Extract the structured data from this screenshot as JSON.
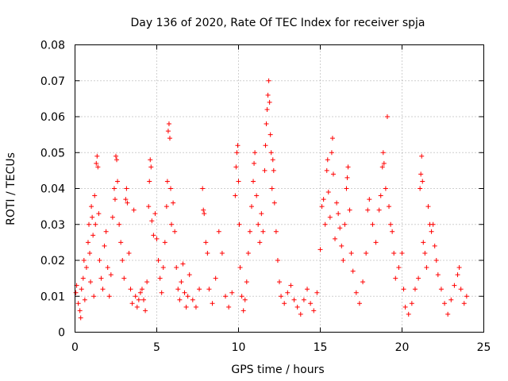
{
  "chart_data": {
    "type": "scatter",
    "title": "Day 136 of 2020, Rate Of TEC Index for receiver spja",
    "xlabel": "GPS time / hours",
    "ylabel": "ROTI / TECUs",
    "xlim": [
      0,
      25
    ],
    "ylim": [
      0,
      0.08
    ],
    "xticks": [
      0,
      5,
      10,
      15,
      20,
      25
    ],
    "xtick_labels": [
      "0",
      "5",
      "10",
      "15",
      "20",
      "25"
    ],
    "yticks": [
      0,
      0.01,
      0.02,
      0.03,
      0.04,
      0.05,
      0.06,
      0.07,
      0.08
    ],
    "ytick_labels": [
      "0",
      "0.01",
      "0.02",
      "0.03",
      "0.04",
      "0.05",
      "0.06",
      "0.07",
      "0.08"
    ],
    "grid": true,
    "marker": "plus",
    "color": "#ff0000",
    "series": [
      {
        "name": "ROTI",
        "points": [
          [
            0.05,
            0.011
          ],
          [
            0.1,
            0.013
          ],
          [
            0.2,
            0.008
          ],
          [
            0.3,
            0.006
          ],
          [
            0.35,
            0.004
          ],
          [
            0.4,
            0.012
          ],
          [
            0.5,
            0.015
          ],
          [
            0.55,
            0.02
          ],
          [
            0.6,
            0.009
          ],
          [
            0.7,
            0.018
          ],
          [
            0.8,
            0.025
          ],
          [
            0.85,
            0.03
          ],
          [
            0.9,
            0.022
          ],
          [
            0.95,
            0.014
          ],
          [
            1.0,
            0.035
          ],
          [
            1.05,
            0.032
          ],
          [
            1.1,
            0.027
          ],
          [
            1.15,
            0.01
          ],
          [
            1.2,
            0.038
          ],
          [
            1.25,
            0.03
          ],
          [
            1.3,
            0.047
          ],
          [
            1.35,
            0.049
          ],
          [
            1.4,
            0.046
          ],
          [
            1.45,
            0.033
          ],
          [
            1.5,
            0.02
          ],
          [
            1.6,
            0.015
          ],
          [
            1.7,
            0.012
          ],
          [
            1.8,
            0.024
          ],
          [
            1.9,
            0.028
          ],
          [
            2.0,
            0.018
          ],
          [
            2.1,
            0.01
          ],
          [
            2.2,
            0.016
          ],
          [
            2.3,
            0.032
          ],
          [
            2.4,
            0.04
          ],
          [
            2.45,
            0.037
          ],
          [
            2.5,
            0.049
          ],
          [
            2.55,
            0.048
          ],
          [
            2.6,
            0.042
          ],
          [
            2.7,
            0.03
          ],
          [
            2.8,
            0.025
          ],
          [
            2.9,
            0.02
          ],
          [
            3.0,
            0.015
          ],
          [
            3.1,
            0.037
          ],
          [
            3.15,
            0.04
          ],
          [
            3.2,
            0.036
          ],
          [
            3.3,
            0.022
          ],
          [
            3.4,
            0.012
          ],
          [
            3.5,
            0.008
          ],
          [
            3.6,
            0.034
          ],
          [
            3.7,
            0.01
          ],
          [
            3.8,
            0.007
          ],
          [
            3.9,
            0.009
          ],
          [
            4.0,
            0.011
          ],
          [
            4.1,
            0.012
          ],
          [
            4.2,
            0.009
          ],
          [
            4.3,
            0.006
          ],
          [
            4.4,
            0.014
          ],
          [
            4.5,
            0.035
          ],
          [
            4.55,
            0.042
          ],
          [
            4.6,
            0.048
          ],
          [
            4.65,
            0.046
          ],
          [
            4.7,
            0.031
          ],
          [
            4.8,
            0.027
          ],
          [
            4.9,
            0.033
          ],
          [
            5.0,
            0.026
          ],
          [
            5.1,
            0.02
          ],
          [
            5.2,
            0.015
          ],
          [
            5.3,
            0.011
          ],
          [
            5.4,
            0.018
          ],
          [
            5.5,
            0.025
          ],
          [
            5.6,
            0.035
          ],
          [
            5.65,
            0.042
          ],
          [
            5.7,
            0.056
          ],
          [
            5.75,
            0.058
          ],
          [
            5.8,
            0.054
          ],
          [
            5.85,
            0.04
          ],
          [
            5.9,
            0.03
          ],
          [
            6.0,
            0.036
          ],
          [
            6.1,
            0.028
          ],
          [
            6.2,
            0.018
          ],
          [
            6.3,
            0.012
          ],
          [
            6.4,
            0.009
          ],
          [
            6.5,
            0.014
          ],
          [
            6.6,
            0.019
          ],
          [
            6.7,
            0.011
          ],
          [
            6.8,
            0.007
          ],
          [
            6.9,
            0.01
          ],
          [
            7.0,
            0.016
          ],
          [
            7.2,
            0.009
          ],
          [
            7.4,
            0.007
          ],
          [
            7.6,
            0.012
          ],
          [
            7.8,
            0.04
          ],
          [
            7.85,
            0.034
          ],
          [
            7.9,
            0.033
          ],
          [
            8.0,
            0.025
          ],
          [
            8.1,
            0.022
          ],
          [
            8.2,
            0.012
          ],
          [
            8.4,
            0.008
          ],
          [
            8.6,
            0.015
          ],
          [
            8.8,
            0.028
          ],
          [
            9.0,
            0.022
          ],
          [
            9.2,
            0.01
          ],
          [
            9.4,
            0.007
          ],
          [
            9.6,
            0.011
          ],
          [
            9.8,
            0.038
          ],
          [
            9.85,
            0.046
          ],
          [
            9.9,
            0.05
          ],
          [
            9.95,
            0.052
          ],
          [
            10.0,
            0.042
          ],
          [
            10.05,
            0.03
          ],
          [
            10.1,
            0.018
          ],
          [
            10.2,
            0.01
          ],
          [
            10.3,
            0.006
          ],
          [
            10.4,
            0.009
          ],
          [
            10.5,
            0.014
          ],
          [
            10.6,
            0.022
          ],
          [
            10.7,
            0.028
          ],
          [
            10.8,
            0.035
          ],
          [
            10.9,
            0.042
          ],
          [
            10.95,
            0.047
          ],
          [
            11.0,
            0.05
          ],
          [
            11.1,
            0.038
          ],
          [
            11.2,
            0.03
          ],
          [
            11.3,
            0.025
          ],
          [
            11.4,
            0.033
          ],
          [
            11.5,
            0.028
          ],
          [
            11.6,
            0.045
          ],
          [
            11.65,
            0.052
          ],
          [
            11.7,
            0.058
          ],
          [
            11.75,
            0.062
          ],
          [
            11.8,
            0.066
          ],
          [
            11.85,
            0.07
          ],
          [
            11.9,
            0.064
          ],
          [
            11.95,
            0.055
          ],
          [
            12.0,
            0.05
          ],
          [
            12.05,
            0.04
          ],
          [
            12.1,
            0.048
          ],
          [
            12.15,
            0.045
          ],
          [
            12.2,
            0.036
          ],
          [
            12.3,
            0.028
          ],
          [
            12.4,
            0.02
          ],
          [
            12.5,
            0.014
          ],
          [
            12.6,
            0.01
          ],
          [
            12.8,
            0.008
          ],
          [
            13.0,
            0.011
          ],
          [
            13.2,
            0.013
          ],
          [
            13.4,
            0.009
          ],
          [
            13.6,
            0.007
          ],
          [
            13.8,
            0.005
          ],
          [
            14.0,
            0.009
          ],
          [
            14.2,
            0.012
          ],
          [
            14.4,
            0.008
          ],
          [
            14.6,
            0.006
          ],
          [
            14.8,
            0.011
          ],
          [
            15.0,
            0.023
          ],
          [
            15.1,
            0.035
          ],
          [
            15.2,
            0.037
          ],
          [
            15.3,
            0.03
          ],
          [
            15.4,
            0.045
          ],
          [
            15.45,
            0.048
          ],
          [
            15.5,
            0.039
          ],
          [
            15.6,
            0.032
          ],
          [
            15.7,
            0.05
          ],
          [
            15.75,
            0.054
          ],
          [
            15.8,
            0.044
          ],
          [
            15.9,
            0.026
          ],
          [
            16.0,
            0.036
          ],
          [
            16.1,
            0.033
          ],
          [
            16.2,
            0.029
          ],
          [
            16.3,
            0.024
          ],
          [
            16.4,
            0.02
          ],
          [
            16.5,
            0.03
          ],
          [
            16.6,
            0.04
          ],
          [
            16.65,
            0.043
          ],
          [
            16.7,
            0.046
          ],
          [
            16.8,
            0.034
          ],
          [
            16.9,
            0.022
          ],
          [
            17.0,
            0.017
          ],
          [
            17.2,
            0.011
          ],
          [
            17.4,
            0.008
          ],
          [
            17.6,
            0.014
          ],
          [
            17.8,
            0.022
          ],
          [
            17.9,
            0.034
          ],
          [
            18.0,
            0.037
          ],
          [
            18.2,
            0.03
          ],
          [
            18.4,
            0.025
          ],
          [
            18.6,
            0.034
          ],
          [
            18.7,
            0.038
          ],
          [
            18.8,
            0.046
          ],
          [
            18.85,
            0.05
          ],
          [
            18.9,
            0.047
          ],
          [
            19.0,
            0.04
          ],
          [
            19.1,
            0.06
          ],
          [
            19.2,
            0.035
          ],
          [
            19.3,
            0.03
          ],
          [
            19.4,
            0.028
          ],
          [
            19.5,
            0.022
          ],
          [
            19.6,
            0.015
          ],
          [
            19.8,
            0.018
          ],
          [
            20.0,
            0.022
          ],
          [
            20.1,
            0.012
          ],
          [
            20.2,
            0.007
          ],
          [
            20.4,
            0.005
          ],
          [
            20.6,
            0.008
          ],
          [
            20.8,
            0.012
          ],
          [
            21.0,
            0.015
          ],
          [
            21.1,
            0.04
          ],
          [
            21.15,
            0.044
          ],
          [
            21.2,
            0.049
          ],
          [
            21.25,
            0.042
          ],
          [
            21.3,
            0.025
          ],
          [
            21.4,
            0.022
          ],
          [
            21.5,
            0.018
          ],
          [
            21.6,
            0.035
          ],
          [
            21.7,
            0.03
          ],
          [
            21.8,
            0.028
          ],
          [
            21.9,
            0.03
          ],
          [
            22.0,
            0.024
          ],
          [
            22.1,
            0.02
          ],
          [
            22.2,
            0.016
          ],
          [
            22.4,
            0.012
          ],
          [
            22.6,
            0.008
          ],
          [
            22.8,
            0.005
          ],
          [
            23.0,
            0.009
          ],
          [
            23.2,
            0.013
          ],
          [
            23.4,
            0.016
          ],
          [
            23.5,
            0.018
          ],
          [
            23.6,
            0.012
          ],
          [
            23.8,
            0.008
          ],
          [
            23.95,
            0.01
          ]
        ]
      }
    ]
  }
}
